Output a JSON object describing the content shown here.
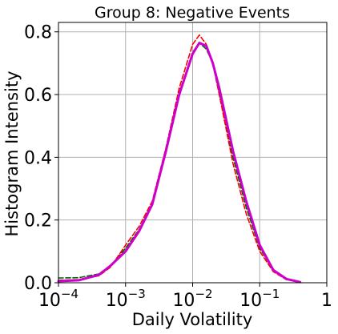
{
  "chart_data": {
    "type": "line",
    "title": "Group 8: Negative Events",
    "xlabel": "Daily Volatility",
    "ylabel": "Histogram Intensity",
    "x_scale": "log",
    "xlim": [
      0.0001,
      1
    ],
    "ylim": [
      0.0,
      0.83
    ],
    "grid": true,
    "legend": "none",
    "x_ticks": [
      {
        "value": 0.0001,
        "base": "10",
        "exp": "−4"
      },
      {
        "value": 0.001,
        "base": "10",
        "exp": "−3"
      },
      {
        "value": 0.01,
        "base": "10",
        "exp": "−2"
      },
      {
        "value": 0.1,
        "base": "10",
        "exp": "−1"
      },
      {
        "value": 1,
        "base": "1",
        "exp": ""
      }
    ],
    "y_ticks": [
      {
        "value": 0.0,
        "label": "0.0"
      },
      {
        "value": 0.2,
        "label": "0.2"
      },
      {
        "value": 0.4,
        "label": "0.4"
      },
      {
        "value": 0.6,
        "label": "0.6"
      },
      {
        "value": 0.8,
        "label": "0.8"
      }
    ],
    "series": [
      {
        "color": "#006400",
        "style": "dashed",
        "points": [
          [
            0.0001,
            0.015
          ],
          [
            0.0002,
            0.016
          ],
          [
            0.0004,
            0.028
          ],
          [
            0.0006,
            0.055
          ],
          [
            0.001,
            0.11
          ],
          [
            0.0016,
            0.17
          ],
          [
            0.0025,
            0.25
          ],
          [
            0.004,
            0.42
          ],
          [
            0.0063,
            0.6
          ],
          [
            0.01,
            0.735
          ],
          [
            0.0126,
            0.765
          ],
          [
            0.016,
            0.745
          ],
          [
            0.02,
            0.7
          ],
          [
            0.025,
            0.6
          ],
          [
            0.04,
            0.4
          ],
          [
            0.063,
            0.24
          ],
          [
            0.1,
            0.11
          ],
          [
            0.16,
            0.04
          ],
          [
            0.25,
            0.012
          ],
          [
            0.4,
            0.002
          ]
        ]
      },
      {
        "color": "#ff0000",
        "style": "dashed",
        "points": [
          [
            0.0001,
            0.008
          ],
          [
            0.0002,
            0.01
          ],
          [
            0.0004,
            0.022
          ],
          [
            0.0006,
            0.05
          ],
          [
            0.001,
            0.12
          ],
          [
            0.0016,
            0.18
          ],
          [
            0.0025,
            0.26
          ],
          [
            0.004,
            0.43
          ],
          [
            0.0063,
            0.62
          ],
          [
            0.01,
            0.76
          ],
          [
            0.0126,
            0.79
          ],
          [
            0.016,
            0.76
          ],
          [
            0.02,
            0.7
          ],
          [
            0.025,
            0.6
          ],
          [
            0.04,
            0.38
          ],
          [
            0.063,
            0.22
          ],
          [
            0.1,
            0.1
          ],
          [
            0.16,
            0.035
          ],
          [
            0.25,
            0.01
          ],
          [
            0.4,
            0.002
          ]
        ]
      },
      {
        "color": "#cc00cc",
        "style": "solid",
        "points": [
          [
            0.0001,
            0.005
          ],
          [
            0.0002,
            0.008
          ],
          [
            0.0004,
            0.025
          ],
          [
            0.0006,
            0.055
          ],
          [
            0.001,
            0.1
          ],
          [
            0.0016,
            0.165
          ],
          [
            0.0025,
            0.25
          ],
          [
            0.004,
            0.42
          ],
          [
            0.0063,
            0.6
          ],
          [
            0.01,
            0.73
          ],
          [
            0.0126,
            0.765
          ],
          [
            0.016,
            0.755
          ],
          [
            0.02,
            0.7
          ],
          [
            0.025,
            0.62
          ],
          [
            0.04,
            0.42
          ],
          [
            0.063,
            0.26
          ],
          [
            0.1,
            0.12
          ],
          [
            0.16,
            0.04
          ],
          [
            0.25,
            0.012
          ],
          [
            0.4,
            0.002
          ]
        ]
      }
    ]
  }
}
